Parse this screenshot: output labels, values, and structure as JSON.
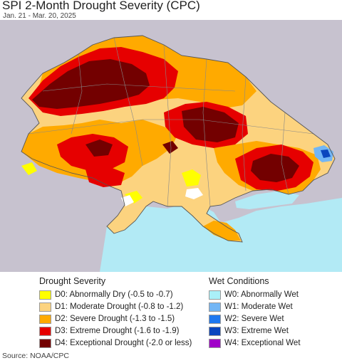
{
  "header": {
    "title": "SPI 2-Month Drought Severity (CPC)",
    "date_range": "Jan. 21 - Mar. 20, 2025"
  },
  "colors": {
    "background": "#c7c2cf",
    "sea": "#b2eaf5",
    "D0": "#ffff00",
    "D1": "#fcd37f",
    "D2": "#ffaa00",
    "D3": "#e60000",
    "D4": "#730000",
    "W0": "#aaf0f8",
    "W1": "#72b6f5",
    "W2": "#1e78f0",
    "W3": "#0a46be",
    "W4": "#a000c8"
  },
  "legend": {
    "drought_title": "Drought Severity",
    "wet_title": "Wet Conditions",
    "drought_items": [
      {
        "label": "D0: Abnormally Dry (-0.5 to -0.7)",
        "color": "#ffff00"
      },
      {
        "label": "D1: Moderate Drought (-0.8 to -1.2)",
        "color": "#fcd37f"
      },
      {
        "label": "D2: Severe Drought (-1.3 to -1.5)",
        "color": "#ffaa00"
      },
      {
        "label": "D3: Extreme Drought (-1.6 to -1.9)",
        "color": "#e60000"
      },
      {
        "label": "D4: Exceptional Drought (-2.0 or less)",
        "color": "#730000"
      }
    ],
    "wet_items": [
      {
        "label": "W0: Abnormally Wet",
        "color": "#aaf0f8"
      },
      {
        "label": "W1: Moderate Wet",
        "color": "#72b6f5"
      },
      {
        "label": "W2: Severe Wet",
        "color": "#1e78f0"
      },
      {
        "label": "W3: Extreme Wet",
        "color": "#0a46be"
      },
      {
        "label": "W4: Exceptional Wet",
        "color": "#a000c8"
      }
    ]
  },
  "footer": {
    "source": "Source: NOAA/CPC"
  }
}
